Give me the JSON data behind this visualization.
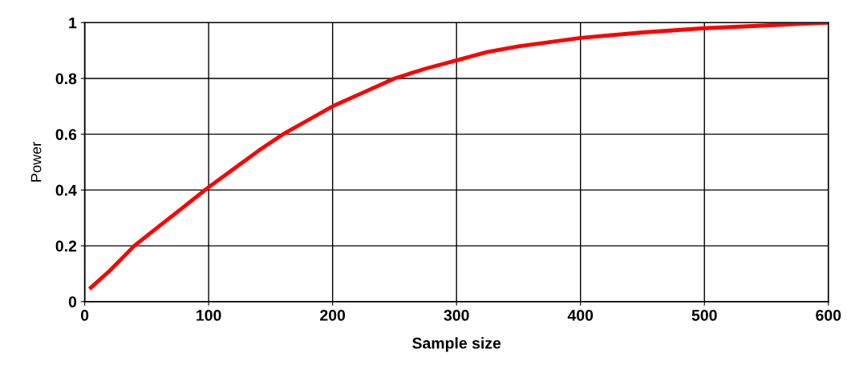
{
  "chart_data": {
    "type": "line",
    "xlabel": "Sample size",
    "ylabel": "Power",
    "series": [
      {
        "color": "#ff0000",
        "x": [
          5,
          20,
          40,
          60,
          80,
          100,
          120,
          140,
          160,
          180,
          200,
          225,
          250,
          275,
          300,
          325,
          350,
          375,
          400,
          450,
          500,
          550,
          600
        ],
        "values": [
          0.05,
          0.11,
          0.2,
          0.27,
          0.34,
          0.41,
          0.475,
          0.54,
          0.6,
          0.65,
          0.7,
          0.75,
          0.8,
          0.835,
          0.865,
          0.895,
          0.915,
          0.93,
          0.945,
          0.965,
          0.98,
          0.99,
          1.0
        ]
      }
    ],
    "xlim": [
      0,
      600
    ],
    "xticks": [
      0,
      100,
      200,
      300,
      400,
      500,
      600
    ],
    "ylim": [
      0,
      1
    ],
    "yticks": [
      0,
      0.2,
      0.4,
      0.6,
      0.8,
      1
    ],
    "grid": true,
    "marker": "none",
    "line_style": "solid"
  }
}
